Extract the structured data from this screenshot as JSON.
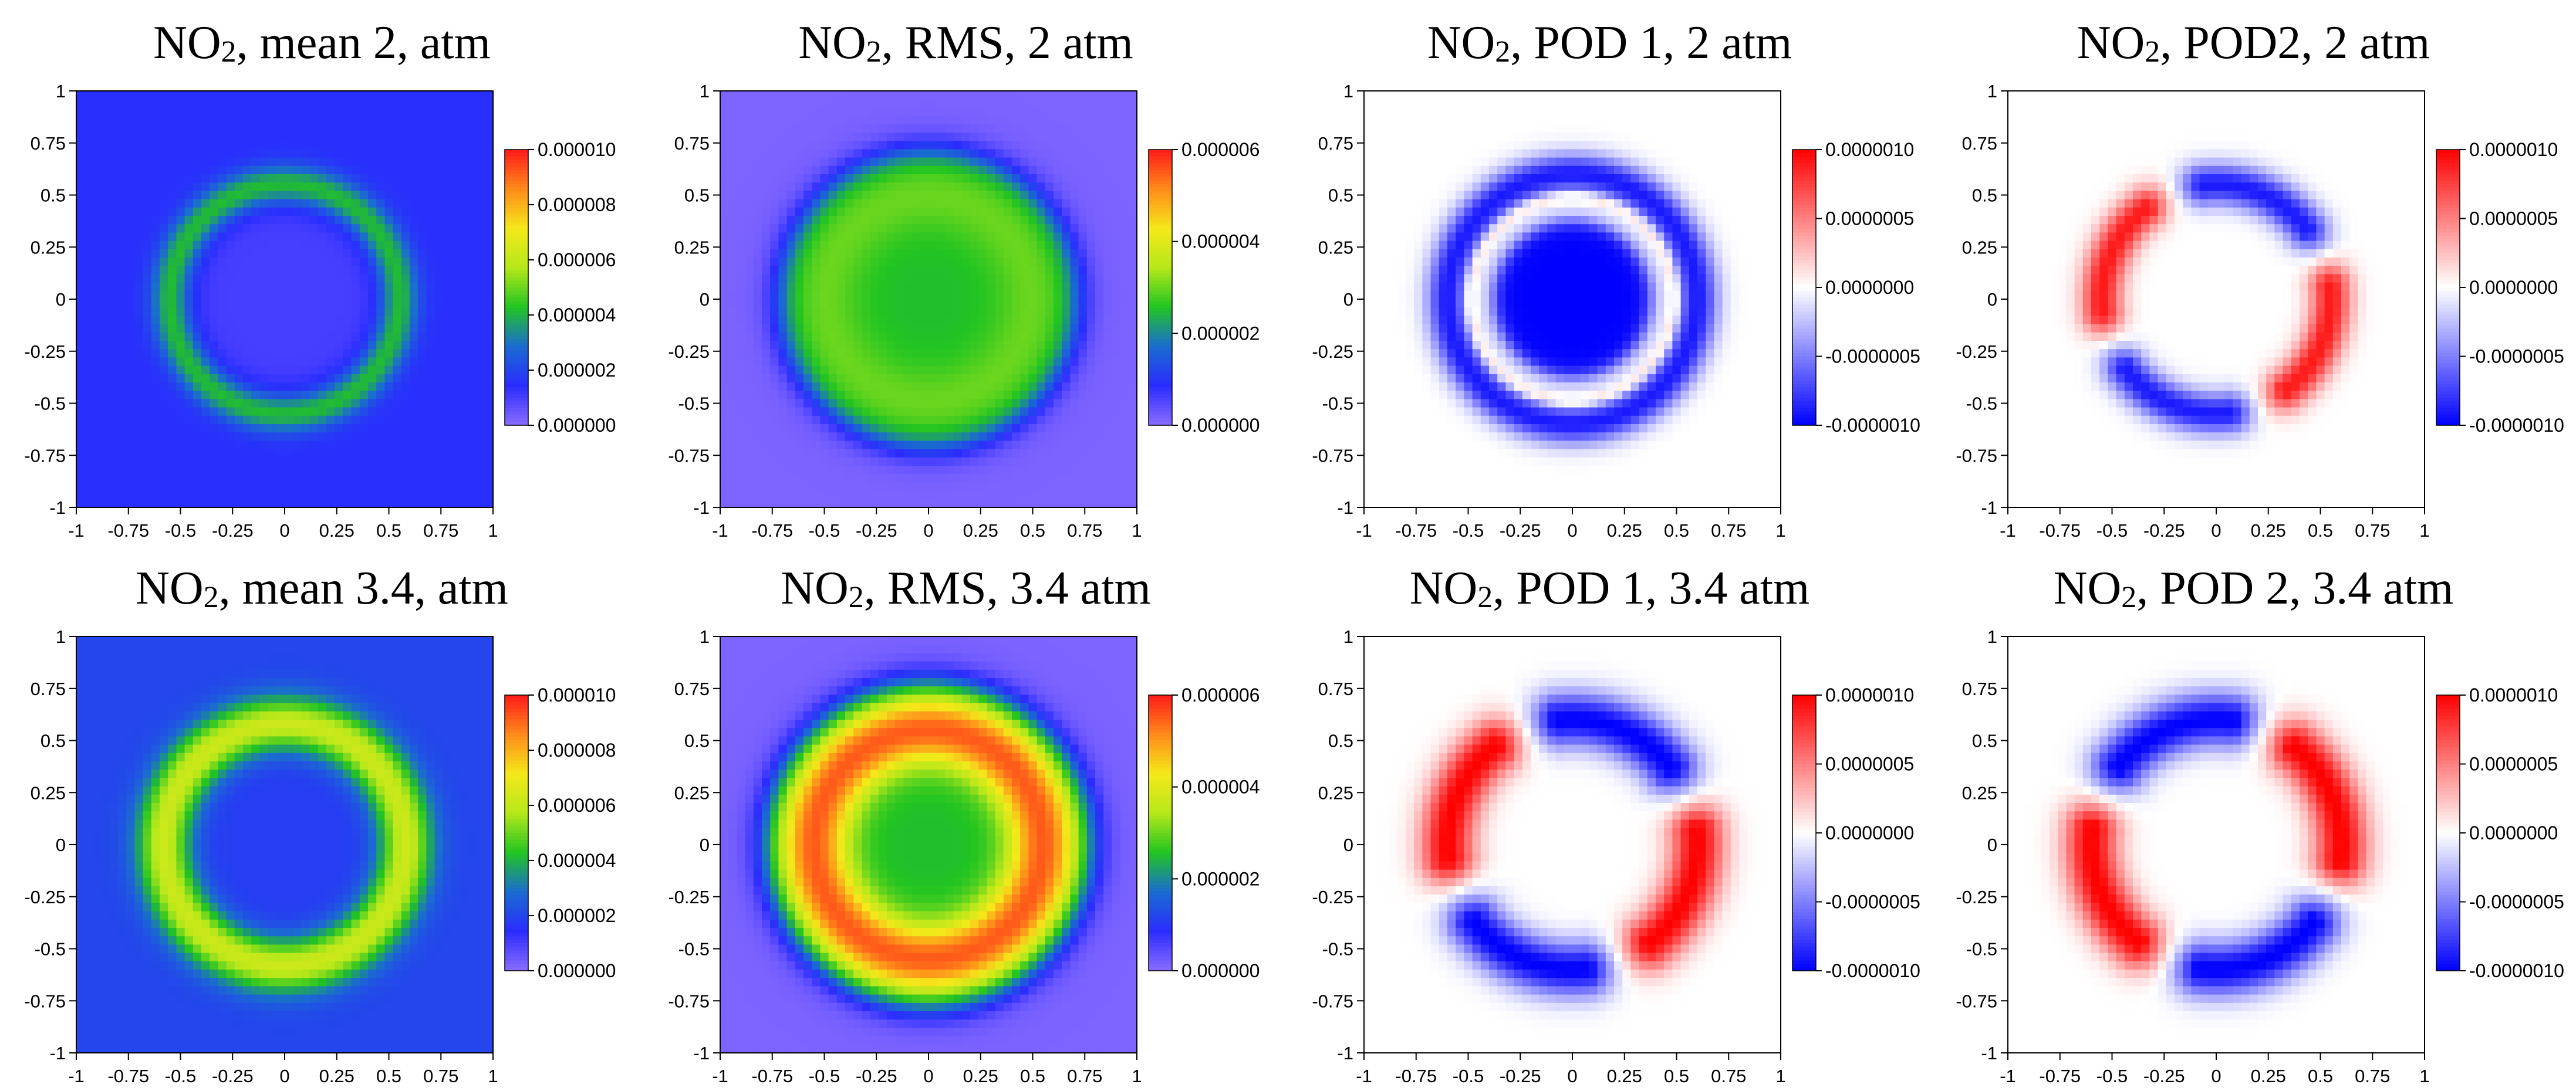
{
  "chart_data": [
    {
      "type": "heatmap",
      "quantity": "mean",
      "title_species": "NO",
      "title_sub": "2",
      "title_rest": ", mean 2, atm",
      "xlim": [
        -1,
        1
      ],
      "ylim": [
        -1,
        1
      ],
      "colormap": "rainbow",
      "colorbar_range": [
        0,
        1e-05
      ],
      "colorbar_ticks": [
        "0.000010",
        "0.000008",
        "0.000006",
        "0.000004",
        "0.000002",
        "0.000000"
      ],
      "field": {
        "background": 0.15,
        "ring_radius": 0.55,
        "ring_width": 0.09,
        "ring_value": 0.42,
        "center_value": 0.1
      }
    },
    {
      "type": "heatmap",
      "quantity": "RMS",
      "title_species": "NO",
      "title_sub": "2",
      "title_rest": ", RMS, 2 atm",
      "xlim": [
        -1,
        1
      ],
      "ylim": [
        -1,
        1
      ],
      "colormap": "rainbow",
      "colorbar_range": [
        0,
        6e-06
      ],
      "colorbar_ticks": [
        "0.000006",
        "0.000004",
        "0.000002",
        "0.000000"
      ],
      "field": {
        "background": 0.02,
        "disk_radius": 0.72,
        "ring_radius": 0.5,
        "ring_width": 0.18,
        "ring_value": 0.5,
        "center_value": 0.42
      }
    },
    {
      "type": "heatmap",
      "quantity": "POD 1",
      "title_species": "NO",
      "title_sub": "2",
      "title_rest": ", POD 1, 2 atm",
      "xlim": [
        -1,
        1
      ],
      "ylim": [
        -1,
        1
      ],
      "colormap": "diverging-blue-white-red",
      "colorbar_range": [
        -1e-06,
        1e-06
      ],
      "colorbar_ticks": [
        "0.0000010",
        "0.0000005",
        "0.0000000",
        "-0.0000005",
        "-0.0000010"
      ],
      "field": {
        "core_radius": 0.38,
        "core_value": -1.0,
        "ring_radius": 0.6,
        "ring_width": 0.1,
        "ring_value": -0.9
      }
    },
    {
      "type": "heatmap",
      "quantity": "POD2",
      "title_species": "NO",
      "title_sub": "2",
      "title_rest": ", POD2, 2 atm",
      "xlim": [
        -1,
        1
      ],
      "ylim": [
        -1,
        1
      ],
      "colormap": "diverging-blue-white-red",
      "colorbar_range": [
        -1e-06,
        1e-06
      ],
      "colorbar_ticks": [
        "0.0000010",
        "0.0000005",
        "0.0000000",
        "-0.0000005",
        "-0.0000010"
      ],
      "field": {
        "ring_radius": 0.55,
        "ring_width": 0.1,
        "mode": 2,
        "amplitude": 0.9
      }
    },
    {
      "type": "heatmap",
      "quantity": "mean",
      "title_species": "NO",
      "title_sub": "2",
      "title_rest": ", mean 3.4, atm",
      "xlim": [
        -1,
        1
      ],
      "ylim": [
        -1,
        1
      ],
      "colormap": "rainbow",
      "colorbar_range": [
        0,
        1e-05
      ],
      "colorbar_ticks": [
        "0.000010",
        "0.000008",
        "0.000006",
        "0.000004",
        "0.000002",
        "0.000000"
      ],
      "field": {
        "background": 0.2,
        "ring_radius": 0.58,
        "ring_width": 0.13,
        "ring_value": 0.62,
        "center_value": 0.18
      }
    },
    {
      "type": "heatmap",
      "quantity": "RMS",
      "title_species": "NO",
      "title_sub": "2",
      "title_rest": ", RMS, 3.4 atm",
      "xlim": [
        -1,
        1
      ],
      "ylim": [
        -1,
        1
      ],
      "colormap": "rainbow",
      "colorbar_range": [
        0,
        6e-06
      ],
      "colorbar_ticks": [
        "0.000006",
        "0.000004",
        "0.000002",
        "0.000000"
      ],
      "field": {
        "background": 0.02,
        "disk_radius": 0.8,
        "ring_radius": 0.55,
        "ring_width": 0.17,
        "ring_value": 0.92,
        "center_value": 0.42
      }
    },
    {
      "type": "heatmap",
      "quantity": "POD 1",
      "title_species": "NO",
      "title_sub": "2",
      "title_rest": ", POD 1, 3.4 atm",
      "xlim": [
        -1,
        1
      ],
      "ylim": [
        -1,
        1
      ],
      "colormap": "diverging-blue-white-red",
      "colorbar_range": [
        -1e-06,
        1e-06
      ],
      "colorbar_ticks": [
        "0.0000010",
        "0.0000005",
        "0.0000000",
        "-0.0000005",
        "-0.0000010"
      ],
      "field": {
        "ring_radius": 0.6,
        "ring_width": 0.13,
        "mode": 2,
        "amplitude": 1.0,
        "phase": 0.0
      }
    },
    {
      "type": "heatmap",
      "quantity": "POD 2",
      "title_species": "NO",
      "title_sub": "2",
      "title_rest": ", POD 2, 3.4 atm",
      "xlim": [
        -1,
        1
      ],
      "ylim": [
        -1,
        1
      ],
      "colormap": "diverging-blue-white-red",
      "colorbar_range": [
        -1e-06,
        1e-06
      ],
      "colorbar_ticks": [
        "0.0000010",
        "0.0000005",
        "0.0000000",
        "-0.0000005",
        "-0.0000010"
      ],
      "field": {
        "ring_radius": 0.6,
        "ring_width": 0.13,
        "mode": 2,
        "amplitude": 1.0,
        "phase": 0.785
      }
    }
  ],
  "axis_tick_labels": [
    "-1",
    "-0.75",
    "-0.5",
    "-0.25",
    "0",
    "0.25",
    "0.5",
    "0.75",
    "1"
  ],
  "colors": {
    "axis": "#000000",
    "background": "#ffffff"
  }
}
